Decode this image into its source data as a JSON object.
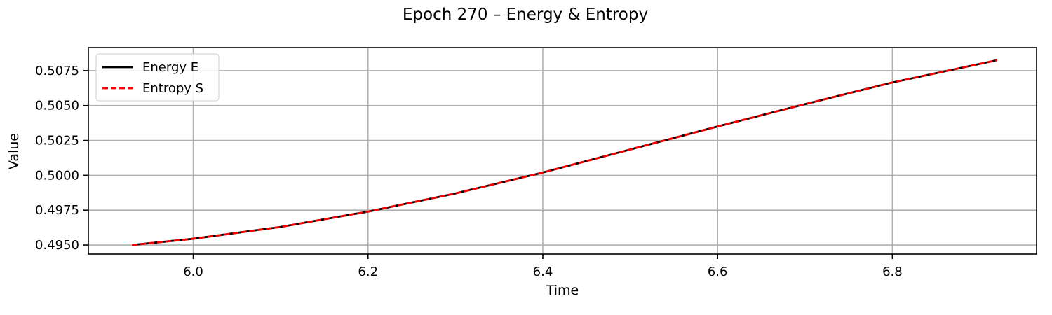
{
  "chart_data": {
    "type": "line",
    "title": "Epoch 270 – Energy & Entropy",
    "xlabel": "Time",
    "ylabel": "Value",
    "xlim": [
      5.88,
      6.965
    ],
    "ylim": [
      0.49435,
      0.50915
    ],
    "xticks": [
      6.0,
      6.2,
      6.4,
      6.6,
      6.8
    ],
    "xtick_labels": [
      "6.0",
      "6.2",
      "6.4",
      "6.6",
      "6.8"
    ],
    "yticks": [
      0.495,
      0.4975,
      0.5,
      0.5025,
      0.505,
      0.5075
    ],
    "ytick_labels": [
      "0.4950",
      "0.4975",
      "0.5000",
      "0.5025",
      "0.5050",
      "0.5075"
    ],
    "grid": true,
    "legend_position": "top-left",
    "x": [
      5.93,
      6.0,
      6.1,
      6.2,
      6.3,
      6.4,
      6.5,
      6.6,
      6.7,
      6.8,
      6.92
    ],
    "series": [
      {
        "name": "Energy E",
        "color": "#000000",
        "style": "solid",
        "values": [
          0.495,
          0.49545,
          0.4963,
          0.4974,
          0.4987,
          0.5002,
          0.50185,
          0.5035,
          0.5051,
          0.50665,
          0.50825
        ]
      },
      {
        "name": "Entropy S",
        "color": "#ff0000",
        "style": "dashed",
        "values": [
          0.495,
          0.49545,
          0.4963,
          0.4974,
          0.4987,
          0.5002,
          0.50185,
          0.5035,
          0.5051,
          0.50665,
          0.50825
        ]
      }
    ]
  }
}
